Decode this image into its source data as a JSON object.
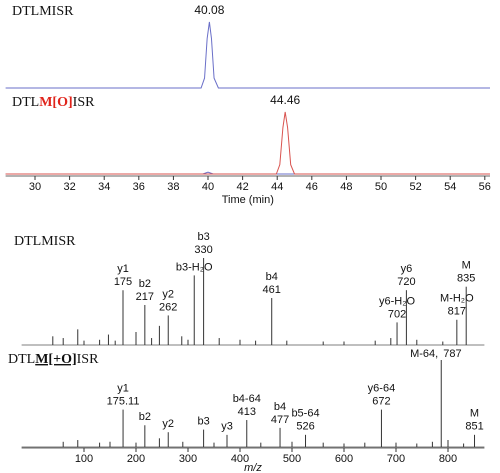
{
  "chart_data": [
    {
      "type": "line",
      "title_parts": [
        {
          "text": "DTLMISR"
        }
      ],
      "xlim": [
        28.3,
        56.3
      ],
      "series": [
        {
          "color": "#6a6fc8",
          "x": [
            28.3,
            39.6,
            39.8,
            39.95,
            40.08,
            40.2,
            40.35,
            40.6,
            56.3
          ],
          "values": [
            0,
            0,
            15,
            75,
            100,
            75,
            15,
            0,
            0
          ]
        }
      ],
      "peak_labels": [
        40.08
      ]
    },
    {
      "type": "line",
      "title_parts": [
        {
          "text": "DTL"
        },
        {
          "text": "M[O]",
          "color": "#e0241b",
          "bold": true
        },
        {
          "text": "ISR"
        }
      ],
      "xlim": [
        28.3,
        56.3
      ],
      "series": [
        {
          "color": "#6a6fc8",
          "x": [
            28.3,
            39.7,
            40.0,
            40.3,
            56.3
          ],
          "values": [
            0,
            0,
            3,
            0,
            0
          ]
        },
        {
          "color": "#d9534f",
          "x": [
            28.3,
            43.95,
            44.15,
            44.33,
            44.46,
            44.6,
            44.78,
            45.0,
            56.3
          ],
          "values": [
            0,
            0,
            15,
            75,
            100,
            75,
            15,
            0,
            0
          ]
        }
      ],
      "peak_labels": [
        44.46
      ],
      "xticks": [
        30,
        32,
        34,
        36,
        38,
        40,
        42,
        44,
        46,
        48,
        50,
        52,
        54,
        56
      ],
      "xlabel": "Time (min)"
    },
    {
      "type": "spectrum",
      "title_parts": [
        {
          "text": "DTLMISR"
        }
      ],
      "xlim": [
        -20,
        870
      ],
      "ion_color": "#e0241b",
      "color": "#333333",
      "peaks": [
        {
          "mz": 40,
          "intensity": 10
        },
        {
          "mz": 60,
          "intensity": 8
        },
        {
          "mz": 88,
          "intensity": 18
        },
        {
          "mz": 100,
          "intensity": 5
        },
        {
          "mz": 130,
          "intensity": 6
        },
        {
          "mz": 147,
          "intensity": 12
        },
        {
          "mz": 160,
          "intensity": 5
        },
        {
          "mz": 175,
          "intensity": 63,
          "ion": "y1",
          "print_mz": true
        },
        {
          "mz": 200,
          "intensity": 15
        },
        {
          "mz": 217,
          "intensity": 46,
          "ion": "b2",
          "print_mz": true
        },
        {
          "mz": 230,
          "intensity": 8
        },
        {
          "mz": 245,
          "intensity": 22
        },
        {
          "mz": 262,
          "intensity": 34,
          "ion": "y2",
          "print_mz": true
        },
        {
          "mz": 288,
          "intensity": 10
        },
        {
          "mz": 300,
          "intensity": 6
        },
        {
          "mz": 312,
          "intensity": 80,
          "ion": "b3-H₂O",
          "print_mz": false
        },
        {
          "mz": 330,
          "intensity": 100,
          "ion": "b3",
          "print_mz": true
        },
        {
          "mz": 360,
          "intensity": 8
        },
        {
          "mz": 400,
          "intensity": 6
        },
        {
          "mz": 430,
          "intensity": 5
        },
        {
          "mz": 461,
          "intensity": 54,
          "ion": "b4",
          "print_mz": true
        },
        {
          "mz": 490,
          "intensity": 5
        },
        {
          "mz": 560,
          "intensity": 4
        },
        {
          "mz": 600,
          "intensity": 4
        },
        {
          "mz": 660,
          "intensity": 5
        },
        {
          "mz": 690,
          "intensity": 8
        },
        {
          "mz": 702,
          "intensity": 26,
          "ion": "y6-H₂O",
          "print_mz": true
        },
        {
          "mz": 720,
          "intensity": 63,
          "ion": "y6",
          "print_mz": true
        },
        {
          "mz": 740,
          "intensity": 6
        },
        {
          "mz": 790,
          "intensity": 4
        },
        {
          "mz": 817,
          "intensity": 29,
          "ion": "M-H₂O",
          "print_mz": true
        },
        {
          "mz": 835,
          "intensity": 67,
          "ion": "M",
          "print_mz": true
        }
      ]
    },
    {
      "type": "spectrum",
      "title_parts": [
        {
          "text": "DTL"
        },
        {
          "text": "M[+O]",
          "bold": true,
          "underline": true
        },
        {
          "text": "ISR"
        }
      ],
      "xlim": [
        -20,
        870
      ],
      "ion_color": "#e0241b",
      "color": "#333333",
      "peaks": [
        {
          "mz": 60,
          "intensity": 6
        },
        {
          "mz": 88,
          "intensity": 8
        },
        {
          "mz": 130,
          "intensity": 5
        },
        {
          "mz": 150,
          "intensity": 6
        },
        {
          "mz": 175.11,
          "intensity": 43,
          "ion": "y1",
          "print_mz": true
        },
        {
          "mz": 200,
          "intensity": 5
        },
        {
          "mz": 217,
          "intensity": 25,
          "ion": "b2",
          "print_mz": false
        },
        {
          "mz": 245,
          "intensity": 10
        },
        {
          "mz": 262,
          "intensity": 17,
          "ion": "y2",
          "print_mz": false
        },
        {
          "mz": 290,
          "intensity": 6
        },
        {
          "mz": 330,
          "intensity": 20,
          "ion": "b3",
          "print_mz": false
        },
        {
          "mz": 350,
          "intensity": 5
        },
        {
          "mz": 375,
          "intensity": 14,
          "ion": "y3",
          "print_mz": false
        },
        {
          "mz": 413,
          "intensity": 31,
          "ion": "b4-64",
          "print_mz": true
        },
        {
          "mz": 440,
          "intensity": 5
        },
        {
          "mz": 477,
          "intensity": 22,
          "ion": "b4",
          "print_mz": true
        },
        {
          "mz": 500,
          "intensity": 6
        },
        {
          "mz": 526,
          "intensity": 14,
          "ion": "b5-64",
          "print_mz": true
        },
        {
          "mz": 560,
          "intensity": 5
        },
        {
          "mz": 600,
          "intensity": 4
        },
        {
          "mz": 640,
          "intensity": 5
        },
        {
          "mz": 672,
          "intensity": 43,
          "ion": "y6-64",
          "print_mz": true
        },
        {
          "mz": 700,
          "intensity": 5
        },
        {
          "mz": 740,
          "intensity": 4
        },
        {
          "mz": 770,
          "intensity": 6
        },
        {
          "mz": 787,
          "intensity": 100,
          "ion": "M-64,",
          "print_mz": true,
          "label_inline": true
        },
        {
          "mz": 800,
          "intensity": 8
        },
        {
          "mz": 830,
          "intensity": 4
        },
        {
          "mz": 851,
          "intensity": 14,
          "ion": "M",
          "print_mz": true
        }
      ],
      "xticks": [
        100,
        200,
        300,
        400,
        500,
        600,
        700,
        800
      ],
      "xlabel": "m/z"
    }
  ]
}
